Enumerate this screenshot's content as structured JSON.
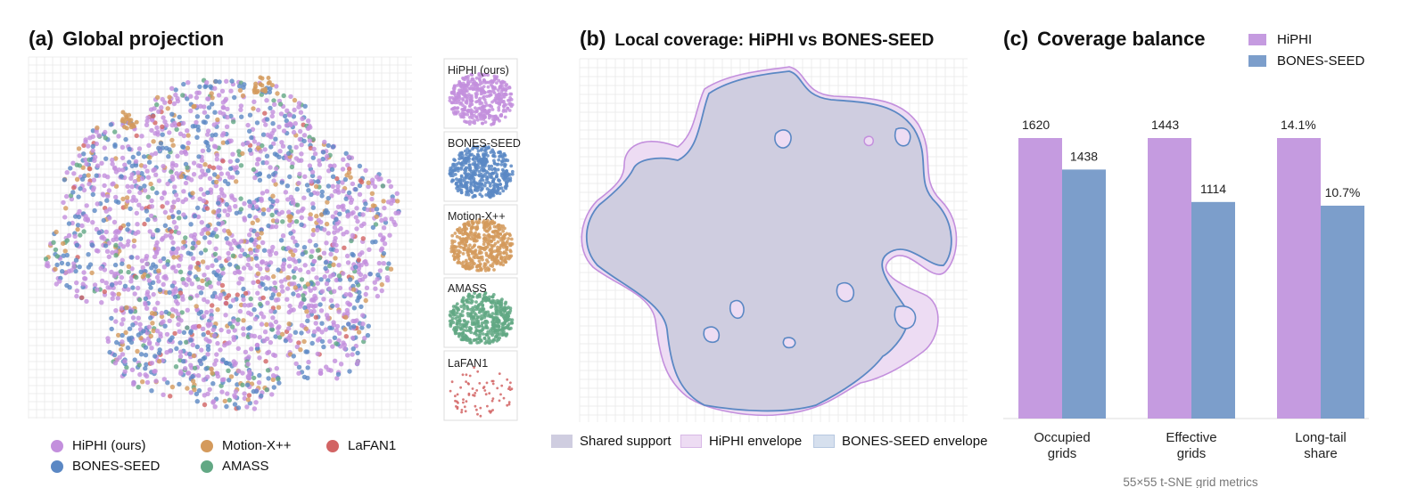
{
  "panel_a": {
    "letter": "(a)",
    "title": "Global projection",
    "colors": {
      "hiphi": "#c38fdd",
      "bones": "#5b88c4",
      "motion": "#d49a5c",
      "amass": "#62a884",
      "lafan": "#d26464"
    },
    "legend": [
      "HiPHI (ours)",
      "BONES-SEED",
      "Motion-X++",
      "AMASS",
      "LaFAN1"
    ],
    "thumbnails": [
      "HiPHI (ours)",
      "BONES-SEED",
      "Motion-X++",
      "AMASS",
      "LaFAN1"
    ]
  },
  "panel_b": {
    "letter": "(b)",
    "title": "Local coverage: HiPHI vs BONES-SEED",
    "legend": [
      "Shared support",
      "HiPHI envelope",
      "BONES-SEED envelope"
    ],
    "colors": {
      "shared": "#cfcde0",
      "hiphi_fill": "#eddcf3",
      "hiphi_line": "#c38fdd",
      "bones_line": "#5b88c4"
    }
  },
  "chart_data": {
    "type": "bar",
    "letter": "(c)",
    "title": "Coverage balance",
    "categories": [
      "Occupied\ngrids",
      "Effective\ngrids",
      "Long-tail\nshare"
    ],
    "series": [
      {
        "name": "HiPHI",
        "color": "#c59be0",
        "values": [
          1620,
          1443,
          14.1
        ],
        "labels": [
          "1620",
          "1443",
          "14.1%"
        ]
      },
      {
        "name": "BONES-SEED",
        "color": "#7c9ecb",
        "values": [
          1438,
          1114,
          10.7
        ],
        "labels": [
          "1438",
          "1114",
          "10.7%"
        ]
      }
    ],
    "xlabel": "55×55 t-SNE grid metrics",
    "legend_position": "top-right"
  }
}
